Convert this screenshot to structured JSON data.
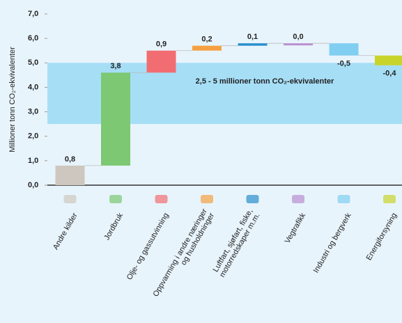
{
  "chart_data": {
    "type": "waterfall",
    "y_label": "Millioner tonn CO₂-ekvivalenter",
    "band_label": "2,5 - 5 millioner tonn CO₂-ekvivalenter",
    "band": [
      2.5,
      5
    ],
    "band_color": "#a6def6",
    "categories": [
      "Andre kilder",
      "Jordbruk",
      "Olje- og gassutvinning",
      "Oppvarming i andre næringer\nog husholdninger",
      "Luftfart, sjøfart, fiske,\nmotorredskaper m.m.",
      "Vegtrafikk",
      "Industri og bergverk",
      "Energiforsyning"
    ],
    "values": [
      0.8,
      3.8,
      0.9,
      0.2,
      0.1,
      0.0,
      -0.5,
      -0.4
    ],
    "value_labels": [
      "0,8",
      "3,8",
      "0,9",
      "0,2",
      "0,1",
      "0,0",
      "-0,5",
      "-0,4"
    ],
    "colors": [
      "#cdc7bf",
      "#7cc873",
      "#f26d71",
      "#f5a142",
      "#2a8fcc",
      "#b98fd0",
      "#80cff2",
      "#c9d42b"
    ],
    "ylim": [
      0,
      7
    ],
    "yticks": [
      {
        "value": 0,
        "label": "0,0"
      },
      {
        "value": 1,
        "label": "1,0"
      },
      {
        "value": 2,
        "label": "2,0"
      },
      {
        "value": 3,
        "label": "3,0"
      },
      {
        "value": 4,
        "label": "4,0"
      },
      {
        "value": 5,
        "label": "5,0"
      },
      {
        "value": 6,
        "label": "6,0"
      },
      {
        "value": 7,
        "label": "7,0"
      }
    ],
    "grid": false
  }
}
